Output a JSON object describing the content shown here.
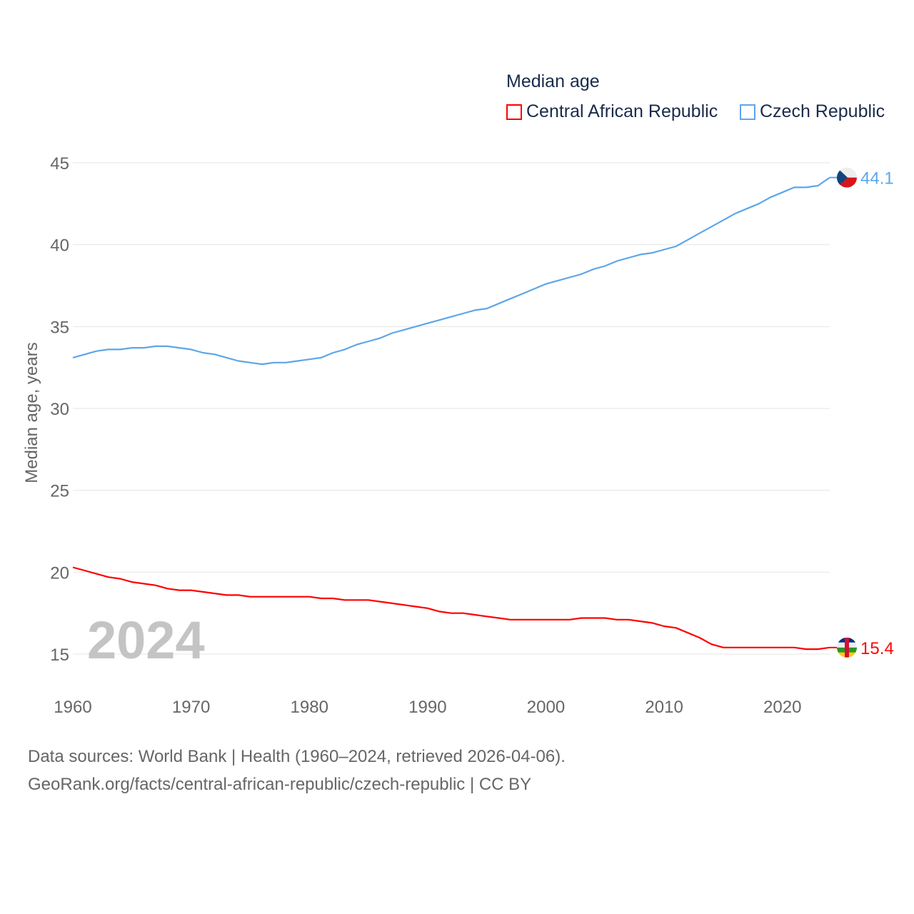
{
  "chart_data": {
    "type": "line",
    "title": "Median age",
    "ylabel": "Median age, years",
    "xlabel": "",
    "xlim": [
      1960,
      2024
    ],
    "ylim": [
      15,
      45
    ],
    "x_ticks": [
      "1960",
      "1970",
      "1980",
      "1990",
      "2000",
      "2010",
      "2020"
    ],
    "y_ticks": [
      "15",
      "20",
      "25",
      "30",
      "35",
      "40",
      "45"
    ],
    "grid": true,
    "legend_position": "top-right",
    "year_watermark": "2024",
    "x": [
      1960,
      1961,
      1962,
      1963,
      1964,
      1965,
      1966,
      1967,
      1968,
      1969,
      1970,
      1971,
      1972,
      1973,
      1974,
      1975,
      1976,
      1977,
      1978,
      1979,
      1980,
      1981,
      1982,
      1983,
      1984,
      1985,
      1986,
      1987,
      1988,
      1989,
      1990,
      1991,
      1992,
      1993,
      1994,
      1995,
      1996,
      1997,
      1998,
      1999,
      2000,
      2001,
      2002,
      2003,
      2004,
      2005,
      2006,
      2007,
      2008,
      2009,
      2010,
      2011,
      2012,
      2013,
      2014,
      2015,
      2016,
      2017,
      2018,
      2019,
      2020,
      2021,
      2022,
      2023,
      2024
    ],
    "series": [
      {
        "name": "Central African Republic",
        "color": "#ff0000",
        "end_label": "15.4",
        "values": [
          20.3,
          20.1,
          19.9,
          19.7,
          19.6,
          19.4,
          19.3,
          19.2,
          19.0,
          18.9,
          18.9,
          18.8,
          18.7,
          18.6,
          18.6,
          18.5,
          18.5,
          18.5,
          18.5,
          18.5,
          18.5,
          18.4,
          18.4,
          18.3,
          18.3,
          18.3,
          18.2,
          18.1,
          18.0,
          17.9,
          17.8,
          17.6,
          17.5,
          17.5,
          17.4,
          17.3,
          17.2,
          17.1,
          17.1,
          17.1,
          17.1,
          17.1,
          17.1,
          17.2,
          17.2,
          17.2,
          17.1,
          17.1,
          17.0,
          16.9,
          16.7,
          16.6,
          16.3,
          16.0,
          15.6,
          15.4,
          15.4,
          15.4,
          15.4,
          15.4,
          15.4,
          15.4,
          15.3,
          15.3,
          15.4
        ]
      },
      {
        "name": "Czech Republic",
        "color": "#5ea6e8",
        "end_label": "44.1",
        "values": [
          33.1,
          33.3,
          33.5,
          33.6,
          33.6,
          33.7,
          33.7,
          33.8,
          33.8,
          33.7,
          33.6,
          33.4,
          33.3,
          33.1,
          32.9,
          32.8,
          32.7,
          32.8,
          32.8,
          32.9,
          33.0,
          33.1,
          33.4,
          33.6,
          33.9,
          34.1,
          34.3,
          34.6,
          34.8,
          35.0,
          35.2,
          35.4,
          35.6,
          35.8,
          36.0,
          36.1,
          36.4,
          36.7,
          37.0,
          37.3,
          37.6,
          37.8,
          38.0,
          38.2,
          38.5,
          38.7,
          39.0,
          39.2,
          39.4,
          39.5,
          39.7,
          39.9,
          40.3,
          40.7,
          41.1,
          41.5,
          41.9,
          42.2,
          42.5,
          42.9,
          43.2,
          43.5,
          43.5,
          43.6,
          44.1
        ]
      }
    ]
  },
  "footer": {
    "line1": "Data sources: World Bank | Health (1960–2024, retrieved 2026-04-06).",
    "line2": "GeoRank.org/facts/central-african-republic/czech-republic | CC BY"
  }
}
